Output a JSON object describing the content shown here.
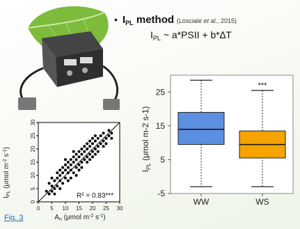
{
  "method": {
    "bullet": "•",
    "name_main": "I",
    "name_sub": "PL",
    "name_rest": " method",
    "citation_pre": "(Losciale ",
    "citation_etal": "et al.",
    "citation_post": ", 2015)",
    "eq_main": "I",
    "eq_sub": "PL",
    "eq_rest": " ~ a*PSII + b*∆T"
  },
  "figure_link": "Fig. 3",
  "scatter": {
    "ylabel_main": "I",
    "ylabel_sub": "PL",
    "ylabel_rest": " (μmol m",
    "ylabel_exp1": "-2",
    "ylabel_mid": " s",
    "ylabel_exp2": "-1",
    "ylabel_end": ")",
    "xlabel_main": "A",
    "xlabel_sub": "n",
    "xlabel_rest": " (μmol m",
    "xlabel_exp1": "-2",
    "xlabel_mid": " s",
    "xlabel_exp2": "-1",
    "xlabel_end": ")",
    "annotation": "R² = 0.83***",
    "xticks": [
      "0",
      "5",
      "10",
      "15",
      "20",
      "25",
      "30"
    ],
    "yticks": [
      "0",
      "5",
      "10",
      "15",
      "20",
      "25",
      "30"
    ]
  },
  "boxplot": {
    "ylabel_main": "I",
    "ylabel_sub": "PL",
    "ylabel_rest": " (μmol m-2 s-1)",
    "yticks": [
      "25",
      "15",
      "5",
      "-5"
    ],
    "significance": "***"
  },
  "colors": {
    "ww": "#5b8fe0",
    "ws": "#f5a300",
    "link": "#1a66c9"
  },
  "chart_data": [
    {
      "type": "scatter",
      "xlabel": "An (μmol m-2 s-1)",
      "ylabel": "IPL (μmol m-2 s-1)",
      "xlim": [
        0,
        30
      ],
      "ylim": [
        0,
        30
      ],
      "annotation": "R² = 0.83***",
      "fit_line": [
        [
          0,
          0
        ],
        [
          30,
          30
        ]
      ],
      "points": [
        [
          3,
          4
        ],
        [
          4,
          3
        ],
        [
          4,
          7
        ],
        [
          5,
          6
        ],
        [
          5,
          9
        ],
        [
          6,
          5
        ],
        [
          6,
          8
        ],
        [
          7,
          6
        ],
        [
          7,
          9
        ],
        [
          7,
          11
        ],
        [
          8,
          8
        ],
        [
          8,
          10
        ],
        [
          8,
          12
        ],
        [
          9,
          7
        ],
        [
          9,
          11
        ],
        [
          9,
          13
        ],
        [
          10,
          9
        ],
        [
          10,
          12
        ],
        [
          10,
          14
        ],
        [
          11,
          11
        ],
        [
          11,
          13
        ],
        [
          11,
          15
        ],
        [
          12,
          12
        ],
        [
          12,
          14
        ],
        [
          12,
          16
        ],
        [
          13,
          11
        ],
        [
          13,
          15
        ],
        [
          13,
          17
        ],
        [
          14,
          13
        ],
        [
          14,
          16
        ],
        [
          14,
          18
        ],
        [
          15,
          14
        ],
        [
          15,
          17
        ],
        [
          15,
          19
        ],
        [
          16,
          15
        ],
        [
          16,
          18
        ],
        [
          16,
          20
        ],
        [
          17,
          16
        ],
        [
          17,
          19
        ],
        [
          17,
          21
        ],
        [
          18,
          17
        ],
        [
          18,
          20
        ],
        [
          18,
          22
        ],
        [
          19,
          18
        ],
        [
          19,
          21
        ],
        [
          19,
          23
        ],
        [
          20,
          19
        ],
        [
          20,
          22
        ],
        [
          20,
          24
        ],
        [
          21,
          20
        ],
        [
          21,
          23
        ],
        [
          21,
          25
        ],
        [
          22,
          21
        ],
        [
          22,
          24
        ],
        [
          23,
          22
        ],
        [
          23,
          25
        ],
        [
          24,
          23
        ],
        [
          24,
          26
        ],
        [
          25,
          24
        ],
        [
          26,
          25
        ],
        [
          26,
          27
        ],
        [
          27,
          26
        ],
        [
          6,
          3
        ],
        [
          10,
          16
        ],
        [
          12,
          9
        ],
        [
          15,
          12
        ],
        [
          18,
          15
        ],
        [
          20,
          17
        ],
        [
          22,
          19
        ],
        [
          5,
          4
        ],
        [
          8,
          5
        ],
        [
          11,
          8
        ],
        [
          14,
          10
        ],
        [
          16,
          13
        ],
        [
          19,
          16
        ],
        [
          21,
          18
        ],
        [
          24,
          21
        ],
        [
          25,
          22
        ],
        [
          27,
          24
        ],
        [
          13,
          19
        ]
      ]
    },
    {
      "type": "box",
      "ylabel": "IPL (μmol m-2 s-1)",
      "ylim": [
        -5,
        30
      ],
      "categories": [
        "WW",
        "WS"
      ],
      "boxes": [
        {
          "name": "WW",
          "whisker_low": -3,
          "q1": 9.5,
          "median": 14,
          "q3": 19,
          "whisker_high": 28.5
        },
        {
          "name": "WS",
          "whisker_low": -3,
          "q1": 5.5,
          "median": 9.5,
          "q3": 13.5,
          "whisker_high": 25.5,
          "annotation": "***"
        }
      ]
    }
  ]
}
